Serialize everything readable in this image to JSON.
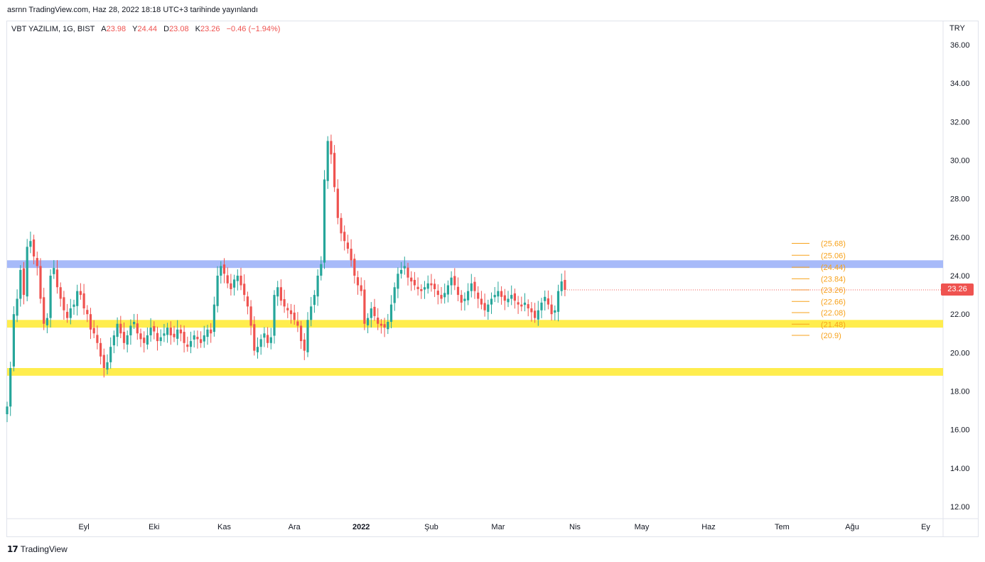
{
  "header": {
    "published": "asrnn TradingView.com, Haz 28, 2022 18:18 UTC+3 tarihinde yayınlandı"
  },
  "legend": {
    "symbol": "VBT YAZILIM, 1G, BIST",
    "open_label": "A",
    "open": "23.98",
    "high_label": "Y",
    "high": "24.44",
    "low_label": "D",
    "low": "23.08",
    "close_label": "K",
    "close": "23.26",
    "change": "−0.46 (−1.94%)"
  },
  "axis": {
    "currency": "TRY",
    "last_price": "23.26"
  },
  "footer": {
    "brand": "TradingView"
  },
  "colors": {
    "up": "#26a69a",
    "down": "#ef5350",
    "yellow_zone": "#ffeb3b",
    "blue_zone": "#9db2f8",
    "fib": "#f7a21b"
  },
  "chart_data": {
    "type": "candlestick",
    "ylim": [
      11.5,
      36.8
    ],
    "y_ticks": [
      "36.00",
      "34.00",
      "32.00",
      "30.00",
      "28.00",
      "26.00",
      "24.00",
      "22.00",
      "20.00",
      "18.00",
      "16.00",
      "14.00",
      "12.00"
    ],
    "x_ticks": [
      {
        "label": "Eyl",
        "day": 23,
        "bold": false
      },
      {
        "label": "Eki",
        "day": 44,
        "bold": false
      },
      {
        "label": "Kas",
        "day": 65,
        "bold": false
      },
      {
        "label": "Ara",
        "day": 86,
        "bold": false
      },
      {
        "label": "2022",
        "day": 106,
        "bold": true
      },
      {
        "label": "Şub",
        "day": 127,
        "bold": false
      },
      {
        "label": "Mar",
        "day": 147,
        "bold": false
      },
      {
        "label": "Nis",
        "day": 170,
        "bold": false
      },
      {
        "label": "May",
        "day": 190,
        "bold": false
      },
      {
        "label": "Haz",
        "day": 210,
        "bold": false
      },
      {
        "label": "Tem",
        "day": 232,
        "bold": false
      },
      {
        "label": "Ağu",
        "day": 253,
        "bold": false
      },
      {
        "label": "Ey",
        "day": 275,
        "bold": false
      }
    ],
    "zones": [
      {
        "color": "blue",
        "low": 24.4,
        "high": 24.8
      },
      {
        "color": "yellow",
        "low": 21.3,
        "high": 21.7
      },
      {
        "color": "yellow",
        "low": 18.8,
        "high": 19.2
      }
    ],
    "fib_levels": [
      {
        "value": 25.68,
        "label": "(25.68)"
      },
      {
        "value": 25.06,
        "label": "(25.06)"
      },
      {
        "value": 24.44,
        "label": "(24.44)"
      },
      {
        "value": 23.84,
        "label": "(23.84)"
      },
      {
        "value": 23.26,
        "label": "(23.26)"
      },
      {
        "value": 22.66,
        "label": "(22.66)"
      },
      {
        "value": 22.08,
        "label": "(22.08)"
      },
      {
        "value": 21.48,
        "label": "(21.48)"
      },
      {
        "value": 20.9,
        "label": "(20.9)"
      }
    ],
    "closes": [
      17.2,
      19.2,
      22.0,
      22.8,
      24.3,
      23.0,
      25.5,
      25.8,
      25.0,
      24.5,
      22.8,
      21.5,
      21.8,
      24.0,
      24.4,
      23.4,
      22.8,
      22.2,
      21.8,
      22.3,
      22.5,
      23.2,
      23.0,
      22.3,
      22.0,
      21.2,
      21.0,
      20.5,
      19.8,
      19.2,
      19.5,
      20.3,
      20.9,
      21.5,
      21.0,
      20.5,
      20.9,
      21.4,
      21.6,
      21.0,
      20.7,
      20.5,
      20.9,
      21.3,
      21.1,
      20.6,
      20.8,
      21.0,
      21.3,
      20.9,
      20.8,
      21.2,
      21.0,
      20.5,
      20.3,
      20.6,
      20.9,
      20.7,
      20.5,
      20.9,
      21.2,
      21.0,
      22.5,
      24.0,
      24.5,
      24.1,
      23.6,
      23.3,
      23.8,
      24.0,
      23.5,
      23.0,
      22.4,
      21.4,
      20.1,
      20.3,
      20.7,
      21.0,
      20.5,
      20.8,
      23.0,
      23.4,
      22.7,
      22.4,
      22.2,
      22.0,
      21.7,
      21.4,
      20.6,
      20.1,
      21.7,
      22.4,
      23.0,
      24.0,
      24.6,
      29.0,
      31.0,
      30.3,
      28.6,
      27.0,
      26.2,
      25.8,
      25.4,
      24.8,
      24.0,
      23.5,
      23.2,
      21.5,
      21.8,
      22.3,
      21.9,
      21.5,
      21.4,
      21.3,
      21.6,
      22.5,
      23.4,
      24.1,
      24.3,
      24.5,
      23.9,
      23.7,
      23.5,
      23.3,
      23.2,
      23.4,
      23.6,
      23.5,
      23.3,
      23.0,
      22.8,
      23.1,
      23.5,
      23.9,
      23.5,
      23.0,
      22.6,
      22.8,
      23.2,
      23.6,
      23.2,
      22.8,
      22.5,
      22.2,
      22.5,
      22.8,
      23.0,
      23.2,
      22.9,
      22.7,
      22.8,
      23.0,
      22.7,
      22.5,
      22.4,
      22.6,
      22.3,
      22.1,
      21.8,
      22.2,
      22.6,
      22.9,
      22.5,
      22.0,
      22.2,
      23.2,
      23.7,
      23.26
    ]
  }
}
